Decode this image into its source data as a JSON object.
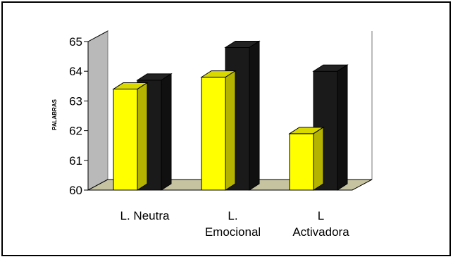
{
  "chart_data": {
    "type": "bar",
    "categories": [
      [
        "L. Neutra"
      ],
      [
        "L.",
        "Emocional"
      ],
      [
        "L",
        "Activadora"
      ]
    ],
    "series": [
      {
        "values": [
          63.4,
          63.8,
          61.9
        ],
        "color": "#ffff00"
      },
      {
        "values": [
          63.7,
          64.8,
          64.0
        ],
        "color": "#1a1a1a"
      }
    ],
    "ylabel": "PALABRAS",
    "ylim": [
      60,
      65
    ],
    "yticks": [
      "60",
      "61",
      "62",
      "63",
      "64",
      "65"
    ],
    "style": "3d-clustered",
    "colors": {
      "wall": "#b9b9b9",
      "floor": "#c6c4a0"
    }
  }
}
